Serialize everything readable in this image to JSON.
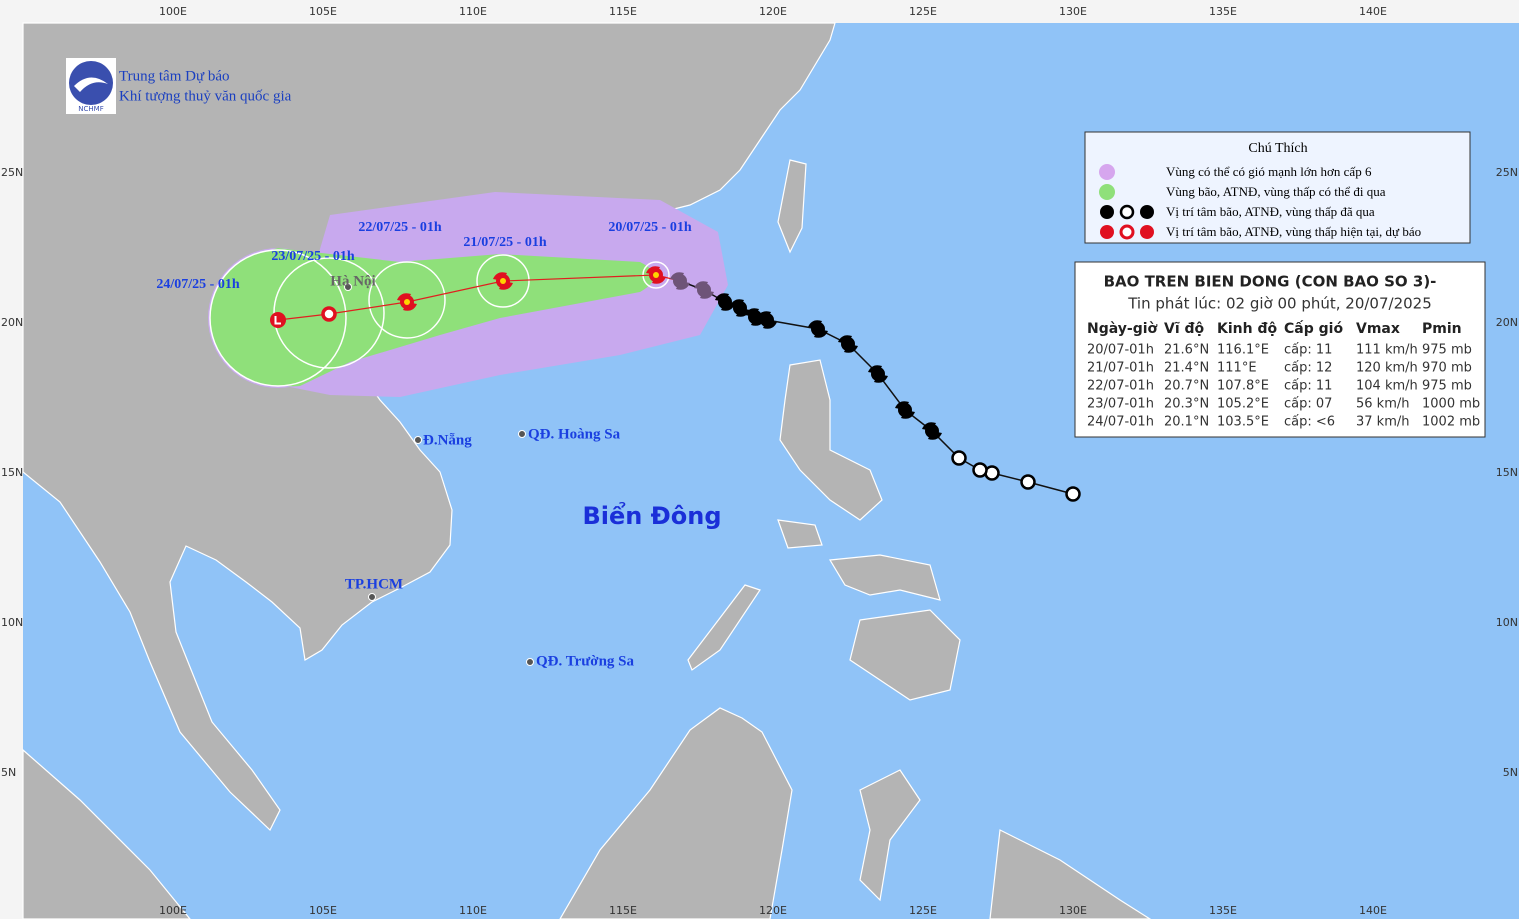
{
  "header": {
    "org_line1": "Trung tâm Dự báo",
    "org_line2": "Khí tượng thuỷ văn quốc gia",
    "logo_text": "NCHMF"
  },
  "axes": {
    "lon_labels": [
      "100E",
      "105E",
      "110E",
      "115E",
      "120E",
      "125E",
      "130E",
      "135E",
      "140E"
    ],
    "lat_labels": [
      "25N",
      "20N",
      "15N",
      "10N",
      "5N"
    ]
  },
  "legend": {
    "title": "Chú Thích",
    "items": [
      "Vùng có thể có gió mạnh lớn hơn cấp 6",
      "Vùng bão, ATNĐ, vùng thấp có thể đi qua",
      "Vị trí tâm bão, ATNĐ, vùng thấp đã qua",
      "Vị trí tâm bão, ATNĐ, vùng thấp hiện tại, dự báo"
    ]
  },
  "bulletin": {
    "title": "BAO TREN BIEN DONG (CON BAO SO 3)-",
    "issued": "Tin phát lúc: 02 giờ 00 phút, 20/07/2025",
    "columns": [
      "Ngày-giờ",
      "Vĩ độ",
      "Kinh độ",
      "Cấp gió",
      "Vmax",
      "Pmin"
    ],
    "rows": [
      [
        "20/07-01h",
        "21.6°N",
        "116.1°E",
        "cấp: 11",
        "111 km/h",
        "975 mb"
      ],
      [
        "21/07-01h",
        "21.4°N",
        "111°E",
        "cấp: 12",
        "120 km/h",
        "970 mb"
      ],
      [
        "22/07-01h",
        "20.7°N",
        "107.8°E",
        "cấp: 11",
        "104 km/h",
        "975 mb"
      ],
      [
        "23/07-01h",
        "20.3°N",
        "105.2°E",
        "cấp: 07",
        "56 km/h",
        "1000 mb"
      ],
      [
        "24/07-01h",
        "20.1°N",
        "103.5°E",
        "cấp: <6",
        "37 km/h",
        "1002 mb"
      ]
    ]
  },
  "forecast_labels": [
    "20/07/25 - 01h",
    "21/07/25 - 01h",
    "22/07/25 - 01h",
    "23/07/25 - 01h",
    "24/07/25 - 01h"
  ],
  "places": [
    "Hà Nội",
    "Đ.Nẵng",
    "QĐ. Hoàng Sa",
    "TP.HCM",
    "QĐ. Trường Sa"
  ],
  "sea_label": "Biển Đông",
  "past_track": [
    [
      130.0,
      14.3
    ],
    [
      128.5,
      14.7
    ],
    [
      127.3,
      15.0
    ],
    [
      126.9,
      15.1
    ],
    [
      126.2,
      15.5
    ],
    [
      125.3,
      16.4
    ],
    [
      124.4,
      17.1
    ],
    [
      123.5,
      18.3
    ],
    [
      122.5,
      19.3
    ],
    [
      121.5,
      19.8
    ],
    [
      119.8,
      20.1
    ],
    [
      119.4,
      20.2
    ],
    [
      118.9,
      20.5
    ],
    [
      118.4,
      20.7
    ],
    [
      117.7,
      21.1
    ],
    [
      116.9,
      21.4
    ]
  ]
}
